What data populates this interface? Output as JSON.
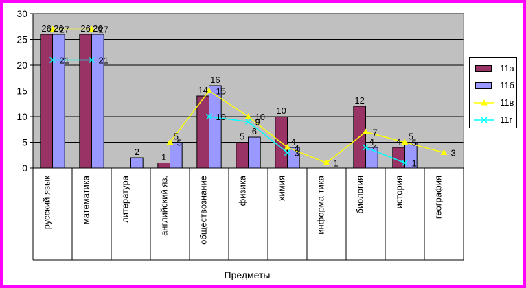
{
  "chart_data": {
    "type": "bar",
    "categories": [
      "русский язык",
      "математика",
      "литература",
      "английский яз.",
      "обществознание",
      "физика",
      "химия",
      "информа тика",
      "биология",
      "история",
      "география"
    ],
    "series": [
      {
        "name": "11а",
        "type": "bar",
        "color": "#993366",
        "values": [
          26,
          26,
          null,
          1,
          14,
          5,
          10,
          null,
          12,
          4,
          null
        ]
      },
      {
        "name": "11б",
        "type": "bar",
        "color": "#9999ff",
        "values": [
          26,
          26,
          2,
          5,
          16,
          6,
          4,
          null,
          4,
          5,
          null
        ]
      },
      {
        "name": "11в",
        "type": "line",
        "color": "#ffff00",
        "marker": "triangle",
        "values": [
          27,
          27,
          null,
          5,
          15,
          10,
          4,
          1,
          7,
          5,
          3
        ]
      },
      {
        "name": "11г",
        "type": "line",
        "color": "#00ffff",
        "marker": "x",
        "values": [
          21,
          21,
          null,
          null,
          10,
          9,
          3,
          null,
          4,
          1,
          null
        ]
      }
    ],
    "xlabel": "Предметы",
    "ylabel": "",
    "ylim": [
      0,
      30
    ],
    "yticks": [
      0,
      5,
      10,
      15,
      20,
      25,
      30
    ],
    "plot_background": "#c0c0c0",
    "legend_position": "right"
  }
}
